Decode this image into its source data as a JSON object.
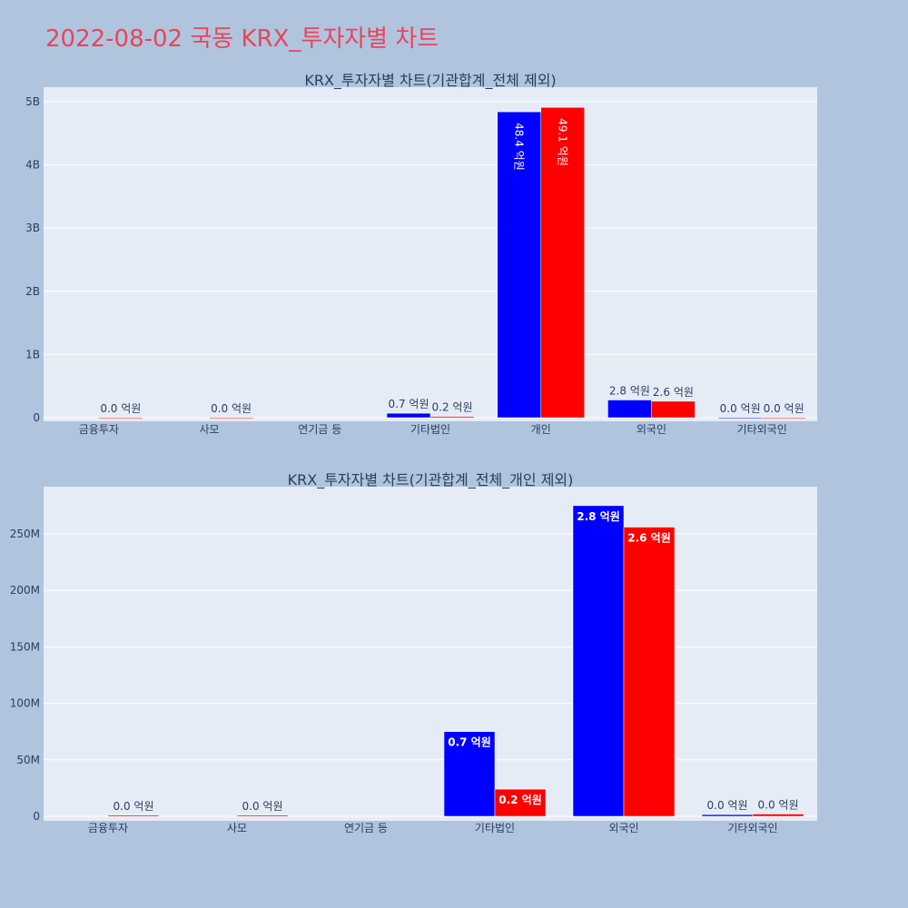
{
  "page_title": "2022-08-02 국동 KRX_투자자별 차트",
  "colors": {
    "series_a": "#0000ff",
    "series_b": "#ff0000",
    "title": "#e8455a"
  },
  "chart_data": [
    {
      "type": "bar",
      "title": "KRX_투자자별 차트(기관합계_전체 제외)",
      "categories": [
        "금융투자",
        "사모",
        "연기금 등",
        "기타법인",
        "개인",
        "외국인",
        "기타외국인"
      ],
      "ylim": [
        0,
        5000000000
      ],
      "yticks": [
        0,
        1000000000,
        2000000000,
        3000000000,
        4000000000,
        5000000000
      ],
      "ytick_labels": [
        "0",
        "1B",
        "2B",
        "3B",
        "4B",
        "5B"
      ],
      "grid": true,
      "series": [
        {
          "values": [
            0,
            0,
            0,
            70000000,
            4840000000,
            280000000,
            1000000
          ],
          "labels": [
            "",
            "",
            "",
            "0.7 억원",
            "48.4 억원",
            "2.8 억원",
            "0.0 억원"
          ],
          "label_inside": [
            false,
            false,
            false,
            false,
            true,
            false,
            false
          ]
        },
        {
          "values": [
            2000000,
            2000000,
            0,
            20000000,
            4910000000,
            260000000,
            1000000
          ],
          "labels": [
            "0.0 억원",
            "0.0 억원",
            "",
            "0.2 억원",
            "49.1 억원",
            "2.6 억원",
            "0.0 억원"
          ],
          "label_inside": [
            false,
            false,
            false,
            false,
            true,
            false,
            false
          ]
        }
      ]
    },
    {
      "type": "bar",
      "title": "KRX_투자자별 차트(기관합계_전체_개인 제외)",
      "categories": [
        "금융투자",
        "사모",
        "연기금 등",
        "기타법인",
        "외국인",
        "기타외국인"
      ],
      "ylim": [
        0,
        290000000
      ],
      "yticks": [
        0,
        50000000,
        100000000,
        150000000,
        200000000,
        250000000
      ],
      "ytick_labels": [
        "0",
        "50M",
        "100M",
        "150M",
        "200M",
        "250M"
      ],
      "grid": true,
      "series": [
        {
          "values": [
            0,
            0,
            0,
            75000000,
            275000000,
            1500000
          ],
          "labels": [
            "",
            "",
            "",
            "0.7 억원",
            "2.8 억원",
            "0.0 억원"
          ],
          "label_inside": [
            false,
            false,
            false,
            true,
            true,
            false
          ]
        },
        {
          "values": [
            1000000,
            1000000,
            0,
            24000000,
            256000000,
            2000000
          ],
          "labels": [
            "0.0 억원",
            "0.0 억원",
            "",
            "0.2 억원",
            "2.6 억원",
            "0.0 억원"
          ],
          "label_inside": [
            false,
            false,
            false,
            true,
            true,
            false
          ]
        }
      ]
    }
  ]
}
